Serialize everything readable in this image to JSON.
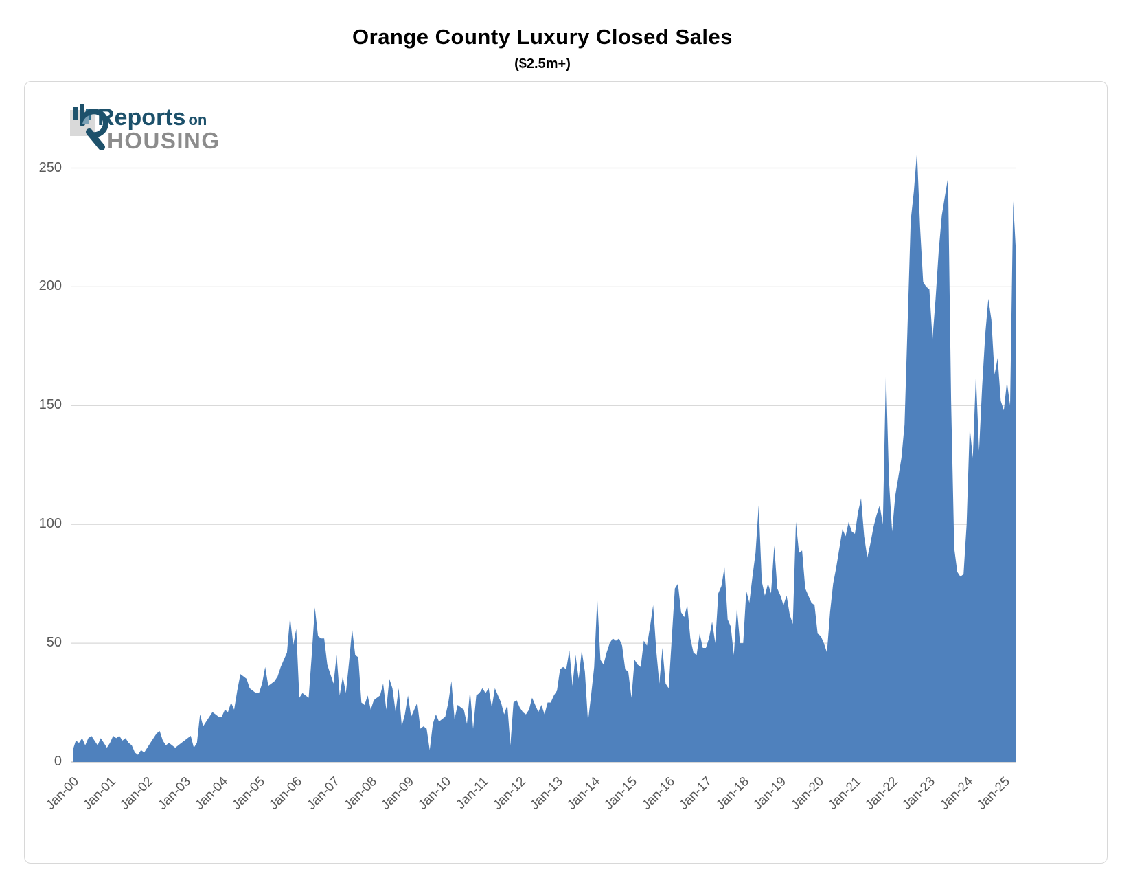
{
  "title": "Orange County Luxury Closed Sales",
  "subtitle": "($2.5m+)",
  "logo": {
    "line1_main": "Reports",
    "line1_small": "on",
    "line2": "HOUSING",
    "navy": "#1d516b",
    "gray": "#8c8c8c"
  },
  "chart_data": {
    "type": "area",
    "title": "Orange County Luxury Closed Sales",
    "subtitle": "($2.5m+)",
    "interval": "monthly",
    "x_start": "Jan-00",
    "x_end": "May-25",
    "x_tick_labels": [
      "Jan-00",
      "Jan-01",
      "Jan-02",
      "Jan-03",
      "Jan-04",
      "Jan-05",
      "Jan-06",
      "Jan-07",
      "Jan-08",
      "Jan-09",
      "Jan-10",
      "Jan-11",
      "Jan-12",
      "Jan-13",
      "Jan-14",
      "Jan-15",
      "Jan-16",
      "Jan-17",
      "Jan-18",
      "Jan-19",
      "Jan-20",
      "Jan-21",
      "Jan-22",
      "Jan-23",
      "Jan-24",
      "Jan-25"
    ],
    "x_tick_interval_months": 12,
    "y_ticks": [
      0,
      50,
      100,
      150,
      200,
      250
    ],
    "ylim": [
      0,
      271
    ],
    "grid": "horizontal",
    "legend": "none",
    "area_color": "#4F81BD",
    "gridline_color": "#d9d9d9",
    "axis_line_color": "#bfbfbf",
    "tick_text_color": "#595959",
    "values": [
      5,
      9,
      8,
      10,
      7,
      10,
      11,
      9,
      7,
      10,
      8,
      6,
      8,
      11,
      10,
      11,
      9,
      10,
      8,
      7,
      4,
      3,
      5,
      4,
      6,
      8,
      10,
      12,
      13,
      9,
      7,
      8,
      7,
      6,
      7,
      8,
      9,
      10,
      11,
      6,
      8,
      20,
      15,
      17,
      19,
      21,
      20,
      19,
      19,
      22,
      21,
      25,
      22,
      30,
      37,
      36,
      35,
      31,
      30,
      29,
      29,
      33,
      40,
      32,
      33,
      34,
      36,
      40,
      43,
      46,
      61,
      49,
      56,
      27,
      29,
      28,
      27,
      45,
      65,
      53,
      52,
      52,
      41,
      37,
      33,
      45,
      28,
      36,
      29,
      42,
      56,
      45,
      44,
      25,
      24,
      28,
      22,
      26,
      27,
      28,
      33,
      22,
      35,
      31,
      21,
      31,
      15,
      20,
      28,
      19,
      22,
      25,
      14,
      15,
      14,
      5,
      16,
      20,
      17,
      18,
      19,
      25,
      34,
      18,
      24,
      23,
      22,
      16,
      30,
      14,
      28,
      29,
      31,
      29,
      31,
      23,
      31,
      28,
      25,
      20,
      24,
      7,
      25,
      26,
      23,
      21,
      20,
      22,
      27,
      24,
      21,
      24,
      20,
      25,
      25,
      28,
      30,
      39,
      40,
      39,
      47,
      32,
      45,
      35,
      47,
      38,
      17,
      28,
      40,
      69,
      43,
      41,
      46,
      50,
      52,
      51,
      52,
      49,
      39,
      38,
      27,
      43,
      41,
      40,
      51,
      49,
      57,
      66,
      47,
      33,
      48,
      33,
      31,
      52,
      73,
      75,
      63,
      61,
      66,
      52,
      46,
      45,
      54,
      48,
      48,
      52,
      59,
      50,
      71,
      74,
      82,
      60,
      57,
      45,
      65,
      50,
      50,
      72,
      67,
      78,
      88,
      108,
      76,
      70,
      75,
      71,
      91,
      73,
      70,
      66,
      70,
      62,
      58,
      101,
      88,
      89,
      73,
      70,
      67,
      66,
      54,
      53,
      50,
      46,
      63,
      75,
      82,
      90,
      98,
      95,
      101,
      97,
      96,
      105,
      111,
      95,
      86,
      92,
      99,
      104,
      108,
      100,
      165,
      118,
      97,
      112,
      120,
      128,
      142,
      185,
      228,
      240,
      257,
      225,
      202,
      200,
      199,
      178,
      195,
      215,
      230,
      238,
      246,
      152,
      90,
      80,
      78,
      79,
      100,
      141,
      128,
      163,
      131,
      158,
      180,
      195,
      186,
      163,
      170,
      152,
      148,
      160,
      150,
      236,
      212
    ]
  }
}
